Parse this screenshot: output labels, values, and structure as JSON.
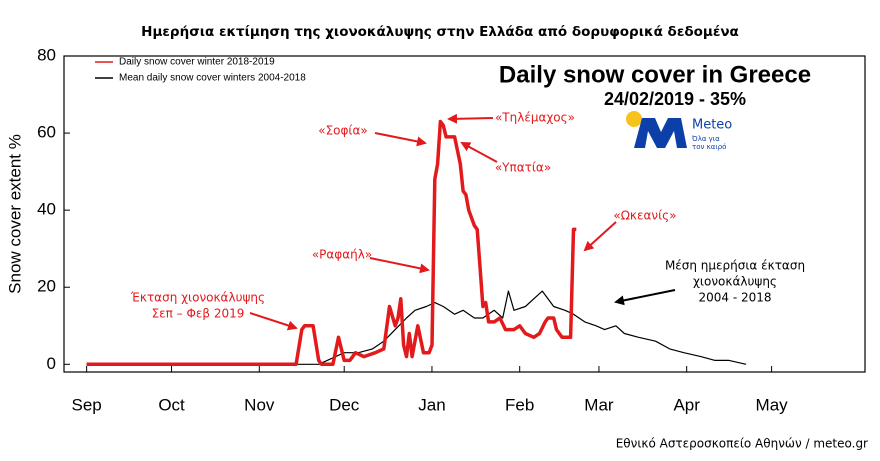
{
  "chart_data": {
    "type": "line",
    "title": "Ημερήσια εκτίμηση της χιονοκάλυψης στην Ελλάδα από δορυφορικά δεδομένα",
    "inset_title": "Daily snow cover in Greece",
    "inset_subtitle": "24/02/2019 - 35%",
    "y_label": "Snow cover extent %",
    "footer": "Εθνικό Αστεροσκοπείο Αθηνών / meteo.gr",
    "logo": {
      "name": "Meteo",
      "tagline": [
        "Όλα για",
        "τον καιρό"
      ]
    },
    "legend": "upper left",
    "grid": false,
    "xlim": [
      -8,
      275
    ],
    "xticks": [
      {
        "value": 0,
        "label": "Sep"
      },
      {
        "value": 30,
        "label": "Oct"
      },
      {
        "value": 61,
        "label": "Nov"
      },
      {
        "value": 91,
        "label": "Dec"
      },
      {
        "value": 122,
        "label": "Jan"
      },
      {
        "value": 153,
        "label": "Feb"
      },
      {
        "value": 181,
        "label": "Mar"
      },
      {
        "value": 212,
        "label": "Apr"
      },
      {
        "value": 242,
        "label": "May"
      }
    ],
    "ylim": [
      -2,
      80
    ],
    "yticks": [
      0,
      20,
      40,
      60,
      80
    ],
    "series": [
      {
        "name": "Mean daily snow cover winters 2004-2018",
        "color": "#000000",
        "width": 1.2,
        "x": [
          0,
          82,
          88,
          91,
          96,
          101,
          105,
          109,
          113,
          116,
          120,
          123,
          126,
          130,
          133,
          137,
          140,
          144,
          147,
          149,
          151,
          155,
          158,
          161,
          165,
          169,
          172,
          176,
          180,
          183,
          187,
          190,
          195,
          201,
          206,
          211,
          217,
          222,
          227,
          233
        ],
        "values": [
          0,
          0,
          2,
          3,
          3,
          4,
          6,
          9,
          12,
          14,
          15,
          16,
          15,
          13,
          14,
          12,
          12,
          14,
          12,
          19,
          14,
          15,
          17,
          19,
          15,
          14,
          13,
          11,
          10,
          9,
          10,
          8,
          7,
          6,
          4,
          3,
          2,
          1,
          1,
          0
        ]
      },
      {
        "name": "Daily snow cover winter 2018-2019",
        "color": "#e31a1c",
        "width": 3.5,
        "x": [
          0,
          74,
          76,
          77,
          80,
          82,
          83,
          87,
          89,
          91,
          93,
          95,
          98,
          102,
          105,
          107,
          109,
          110,
          111,
          112,
          113,
          114,
          115,
          117,
          119,
          121,
          122,
          123,
          124,
          125,
          126,
          127,
          130,
          132,
          133,
          134,
          135,
          137,
          138,
          139,
          140,
          141,
          142,
          144,
          146,
          148,
          151,
          153,
          155,
          158,
          160,
          162,
          163,
          165,
          166,
          168,
          171,
          172,
          173
        ],
        "values": [
          0,
          0,
          9,
          10,
          10,
          1,
          0,
          0,
          7,
          1,
          1,
          3,
          2,
          3,
          4,
          15,
          10,
          12,
          17,
          5,
          2,
          8,
          2,
          10,
          3,
          3,
          5,
          48,
          52,
          63,
          62,
          59,
          59,
          52,
          45,
          44,
          40,
          36,
          35,
          25,
          15,
          16,
          11,
          11,
          12,
          9,
          9,
          10,
          8,
          7,
          8,
          11,
          12,
          12,
          9,
          7,
          7,
          35,
          35
        ]
      }
    ],
    "annotations": [
      {
        "lines": [
          "«Σοφία»"
        ],
        "color": "#e31a1c"
      },
      {
        "lines": [
          "«Τηλέμαχος»"
        ],
        "color": "#e31a1c"
      },
      {
        "lines": [
          "«Υπατία»"
        ],
        "color": "#e31a1c"
      },
      {
        "lines": [
          "«Ωκεανίς»"
        ],
        "color": "#e31a1c"
      },
      {
        "lines": [
          "«Ραφαήλ»"
        ],
        "color": "#e31a1c"
      },
      {
        "lines": [
          "Έκταση χιονοκάλυψης",
          "Σεπ – Φεβ 2019"
        ],
        "color": "#e31a1c"
      },
      {
        "lines": [
          "Μέση ημερήσια έκταση",
          "χιονοκάλυψης",
          "2004 - 2018"
        ],
        "color": "#000000"
      }
    ]
  }
}
